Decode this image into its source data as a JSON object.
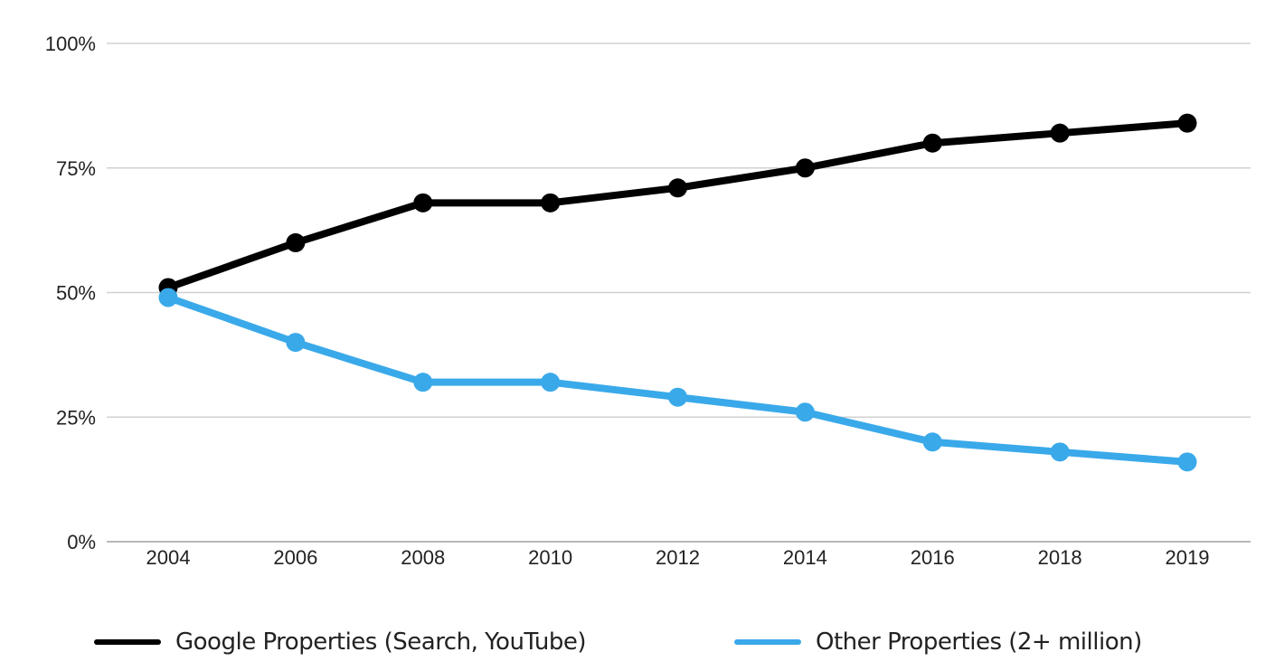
{
  "chart_data": {
    "type": "line",
    "title": "",
    "xlabel": "",
    "ylabel": "",
    "categories": [
      "2004",
      "2006",
      "2008",
      "2010",
      "2012",
      "2014",
      "2016",
      "2018",
      "2019"
    ],
    "ylim": [
      0,
      100
    ],
    "yticks": [
      "0%",
      "25%",
      "50%",
      "75%",
      "100%"
    ],
    "grid": true,
    "legend_position": "bottom",
    "series": [
      {
        "name": "Google Properties (Search, YouTube)",
        "color": "#000000",
        "values": [
          51,
          60,
          68,
          68,
          71,
          75,
          80,
          82,
          84
        ]
      },
      {
        "name": "Other Properties (2+ million)",
        "color": "#3aa9ea",
        "values": [
          49,
          40,
          32,
          32,
          29,
          26,
          20,
          18,
          16
        ]
      }
    ]
  }
}
